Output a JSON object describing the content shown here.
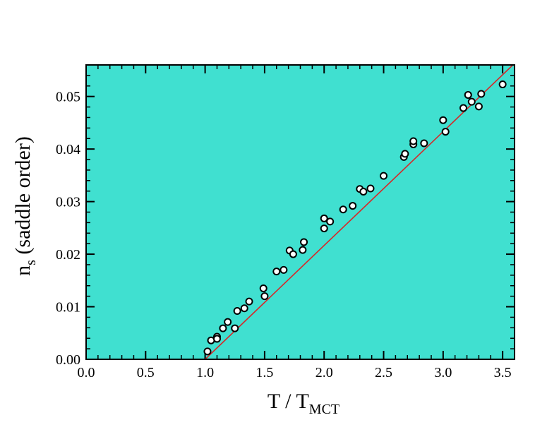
{
  "chart_data": {
    "type": "scatter",
    "title": "",
    "xlabel": {
      "main": "T / T",
      "sub": "MCT"
    },
    "ylabel": {
      "main": "n",
      "sub": "s",
      "suffix": " (saddle order)"
    },
    "xlim": [
      0.0,
      3.6
    ],
    "ylim": [
      0.0,
      0.056
    ],
    "x_ticks": [
      0.0,
      0.5,
      1.0,
      1.5,
      2.0,
      2.5,
      3.0,
      3.5
    ],
    "x_tick_labels": [
      "0.0",
      "0.5",
      "1.0",
      "1.5",
      "2.0",
      "2.5",
      "3.0",
      "3.5"
    ],
    "y_ticks": [
      0.0,
      0.01,
      0.02,
      0.03,
      0.04,
      0.05
    ],
    "y_tick_labels": [
      "0.00",
      "0.01",
      "0.02",
      "0.03",
      "0.04",
      "0.05"
    ],
    "x_minor_step": 0.1,
    "y_minor_step": 0.002,
    "colors": {
      "plot_background": "#40e0d0",
      "fit_line": "#d62728",
      "marker_fill": "#ffffff",
      "marker_edge": "#000000"
    },
    "series": [
      {
        "kind": "points",
        "points": [
          [
            1.02,
            0.0015
          ],
          [
            1.05,
            0.0036
          ],
          [
            1.1,
            0.0043
          ],
          [
            1.1,
            0.0039
          ],
          [
            1.15,
            0.0059
          ],
          [
            1.19,
            0.0071
          ],
          [
            1.25,
            0.0059
          ],
          [
            1.27,
            0.0092
          ],
          [
            1.33,
            0.0097
          ],
          [
            1.37,
            0.011
          ],
          [
            1.49,
            0.0135
          ],
          [
            1.5,
            0.012
          ],
          [
            1.6,
            0.0167
          ],
          [
            1.66,
            0.017
          ],
          [
            1.71,
            0.0207
          ],
          [
            1.74,
            0.02
          ],
          [
            1.82,
            0.0208
          ],
          [
            1.83,
            0.0223
          ],
          [
            2.0,
            0.0268
          ],
          [
            2.0,
            0.0249
          ],
          [
            2.05,
            0.0262
          ],
          [
            2.16,
            0.0285
          ],
          [
            2.24,
            0.0292
          ],
          [
            2.3,
            0.0324
          ],
          [
            2.33,
            0.0319
          ],
          [
            2.39,
            0.0325
          ],
          [
            2.5,
            0.0349
          ],
          [
            2.67,
            0.0385
          ],
          [
            2.68,
            0.0391
          ],
          [
            2.75,
            0.0409
          ],
          [
            2.75,
            0.0415
          ],
          [
            2.84,
            0.0411
          ],
          [
            3.0,
            0.0455
          ],
          [
            3.02,
            0.0433
          ],
          [
            3.17,
            0.0478
          ],
          [
            3.21,
            0.0503
          ],
          [
            3.24,
            0.049
          ],
          [
            3.3,
            0.0481
          ],
          [
            3.32,
            0.0505
          ],
          [
            3.5,
            0.0523
          ]
        ]
      },
      {
        "kind": "fit-line",
        "points": [
          [
            1.0,
            0.0
          ],
          [
            3.6,
            0.0563
          ]
        ]
      }
    ]
  }
}
